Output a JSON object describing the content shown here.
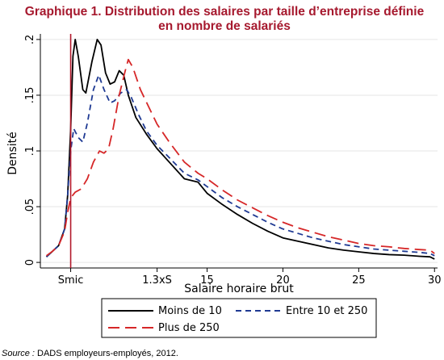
{
  "chart_data": {
    "type": "line",
    "title_line1": "Graphique 1. Distribution des salaires par taille d’entreprise définie",
    "title_line2": "en nombre de salariés",
    "ylabel": "Densité",
    "xlabel": "Salaire horaire brut",
    "xlim": [
      4.0,
      30.2
    ],
    "ylim": [
      -0.005,
      0.205
    ],
    "x_ticks": [
      {
        "value": 6.0,
        "label": "Smic"
      },
      {
        "value": 11.7,
        "label": "1.3xS"
      },
      {
        "value": 15,
        "label": "15"
      },
      {
        "value": 20,
        "label": "20"
      },
      {
        "value": 25,
        "label": "25"
      },
      {
        "value": 30,
        "label": "30"
      }
    ],
    "y_ticks": [
      {
        "value": 0,
        "label": "0"
      },
      {
        "value": 0.05,
        "label": ".05"
      },
      {
        "value": 0.1,
        "label": ".1"
      },
      {
        "value": 0.15,
        "label": ".15"
      },
      {
        "value": 0.2,
        "label": ".2"
      }
    ],
    "reference_line": {
      "x": 6.0,
      "color": "#b2182b"
    },
    "grid": "horizontal",
    "legend_position": "bottom",
    "series": [
      {
        "name": "Moins de 10",
        "color": "#000000",
        "dash": "solid",
        "points": [
          [
            4.4,
            0.005
          ],
          [
            4.8,
            0.01
          ],
          [
            5.2,
            0.015
          ],
          [
            5.6,
            0.03
          ],
          [
            5.8,
            0.06
          ],
          [
            6.0,
            0.12
          ],
          [
            6.15,
            0.185
          ],
          [
            6.3,
            0.2
          ],
          [
            6.5,
            0.185
          ],
          [
            6.8,
            0.155
          ],
          [
            7.0,
            0.152
          ],
          [
            7.4,
            0.18
          ],
          [
            7.75,
            0.2
          ],
          [
            8.0,
            0.195
          ],
          [
            8.3,
            0.17
          ],
          [
            8.6,
            0.16
          ],
          [
            8.9,
            0.162
          ],
          [
            9.2,
            0.172
          ],
          [
            9.5,
            0.168
          ],
          [
            9.8,
            0.15
          ],
          [
            10.3,
            0.13
          ],
          [
            11.0,
            0.115
          ],
          [
            11.7,
            0.102
          ],
          [
            12.5,
            0.09
          ],
          [
            13.5,
            0.075
          ],
          [
            14.4,
            0.072
          ],
          [
            15.0,
            0.062
          ],
          [
            16.0,
            0.052
          ],
          [
            17.0,
            0.043
          ],
          [
            18.0,
            0.035
          ],
          [
            19.0,
            0.028
          ],
          [
            20.0,
            0.022
          ],
          [
            21.0,
            0.019
          ],
          [
            22.0,
            0.016
          ],
          [
            23.0,
            0.013
          ],
          [
            24.0,
            0.011
          ],
          [
            25.0,
            0.0095
          ],
          [
            26.0,
            0.008
          ],
          [
            27.0,
            0.007
          ],
          [
            28.0,
            0.0065
          ],
          [
            29.0,
            0.0055
          ],
          [
            29.7,
            0.005
          ],
          [
            30.0,
            0.003
          ]
        ]
      },
      {
        "name": "Entre 10 et 250",
        "color": "#1f3a93",
        "dash": "7,5",
        "points": [
          [
            4.4,
            0.005
          ],
          [
            4.8,
            0.01
          ],
          [
            5.2,
            0.015
          ],
          [
            5.6,
            0.03
          ],
          [
            5.8,
            0.06
          ],
          [
            6.0,
            0.1
          ],
          [
            6.2,
            0.12
          ],
          [
            6.5,
            0.112
          ],
          [
            6.8,
            0.108
          ],
          [
            7.1,
            0.125
          ],
          [
            7.5,
            0.155
          ],
          [
            7.85,
            0.168
          ],
          [
            8.2,
            0.155
          ],
          [
            8.6,
            0.143
          ],
          [
            8.9,
            0.145
          ],
          [
            9.3,
            0.152
          ],
          [
            9.7,
            0.155
          ],
          [
            10.0,
            0.148
          ],
          [
            10.5,
            0.132
          ],
          [
            11.0,
            0.118
          ],
          [
            11.7,
            0.105
          ],
          [
            12.5,
            0.094
          ],
          [
            13.5,
            0.08
          ],
          [
            14.4,
            0.074
          ],
          [
            15.0,
            0.068
          ],
          [
            16.0,
            0.058
          ],
          [
            17.0,
            0.05
          ],
          [
            18.0,
            0.043
          ],
          [
            19.0,
            0.036
          ],
          [
            20.0,
            0.03
          ],
          [
            21.0,
            0.026
          ],
          [
            22.0,
            0.022
          ],
          [
            23.0,
            0.019
          ],
          [
            24.0,
            0.016
          ],
          [
            25.0,
            0.014
          ],
          [
            26.0,
            0.012
          ],
          [
            27.0,
            0.011
          ],
          [
            28.0,
            0.01
          ],
          [
            29.0,
            0.009
          ],
          [
            29.7,
            0.008
          ],
          [
            30.0,
            0.006
          ]
        ]
      },
      {
        "name": "Plus de 250",
        "color": "#d62728",
        "dash": "14,7",
        "points": [
          [
            4.4,
            0.006
          ],
          [
            4.8,
            0.01
          ],
          [
            5.2,
            0.015
          ],
          [
            5.6,
            0.028
          ],
          [
            5.8,
            0.045
          ],
          [
            6.0,
            0.058
          ],
          [
            6.3,
            0.063
          ],
          [
            6.7,
            0.066
          ],
          [
            7.1,
            0.075
          ],
          [
            7.5,
            0.09
          ],
          [
            7.9,
            0.1
          ],
          [
            8.2,
            0.098
          ],
          [
            8.5,
            0.102
          ],
          [
            8.8,
            0.12
          ],
          [
            9.2,
            0.15
          ],
          [
            9.6,
            0.172
          ],
          [
            9.8,
            0.182
          ],
          [
            10.1,
            0.175
          ],
          [
            10.6,
            0.155
          ],
          [
            11.2,
            0.138
          ],
          [
            11.7,
            0.124
          ],
          [
            12.5,
            0.108
          ],
          [
            13.5,
            0.09
          ],
          [
            14.4,
            0.08
          ],
          [
            15.0,
            0.075
          ],
          [
            16.0,
            0.065
          ],
          [
            17.0,
            0.056
          ],
          [
            18.0,
            0.049
          ],
          [
            19.0,
            0.042
          ],
          [
            20.0,
            0.036
          ],
          [
            21.0,
            0.031
          ],
          [
            22.0,
            0.027
          ],
          [
            23.0,
            0.023
          ],
          [
            24.0,
            0.02
          ],
          [
            25.0,
            0.017
          ],
          [
            26.0,
            0.015
          ],
          [
            27.0,
            0.014
          ],
          [
            28.0,
            0.0125
          ],
          [
            29.0,
            0.0115
          ],
          [
            29.7,
            0.011
          ],
          [
            30.0,
            0.008
          ]
        ]
      }
    ]
  },
  "source": {
    "label": "Source :",
    "text": " DADS employeurs-employés, 2012."
  }
}
